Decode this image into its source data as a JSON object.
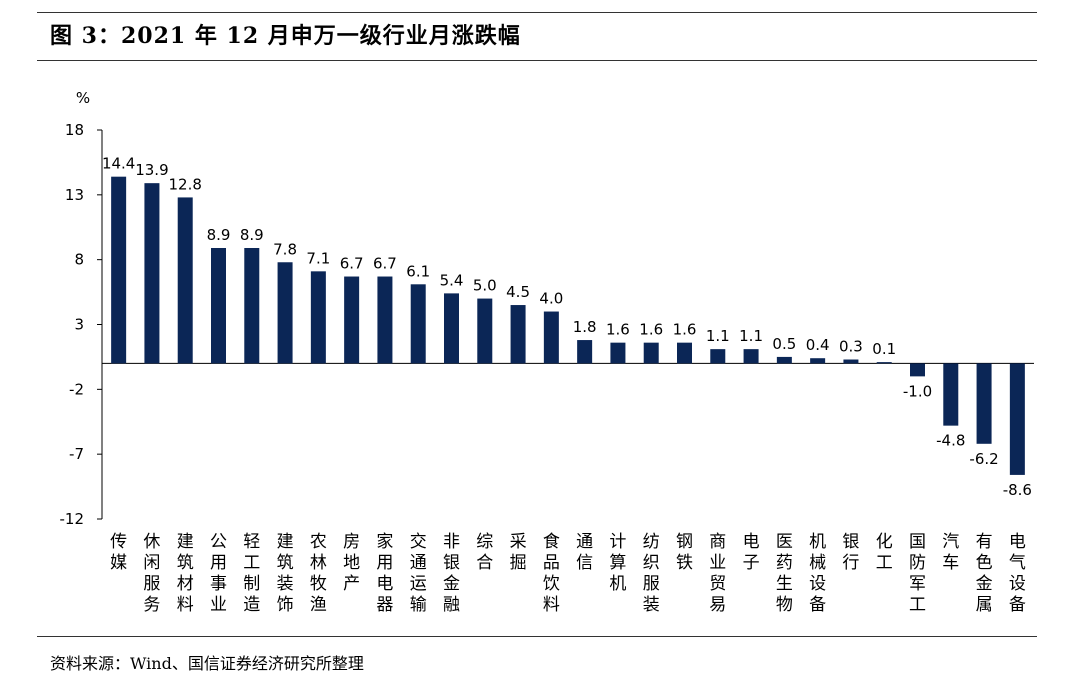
{
  "header": {
    "title": "图 3：2021 年 12 月申万一级行业月涨跌幅"
  },
  "footer": {
    "source": "资料来源：Wind、国信证券经济研究所整理"
  },
  "chart_data": {
    "type": "bar",
    "unit_label": "%",
    "categories": [
      "传媒",
      "休闲服务",
      "建筑材料",
      "公用事业",
      "轻工制造",
      "建筑装饰",
      "农林牧渔",
      "房地产",
      "家用电器",
      "交通运输",
      "非银金融",
      "综合",
      "采掘",
      "食品饮料",
      "通信",
      "计算机",
      "纺织服装",
      "钢铁",
      "商业贸易",
      "电子",
      "医药生物",
      "机械设备",
      "银行",
      "化工",
      "国防军工",
      "汽车",
      "有色金属",
      "电气设备"
    ],
    "values": [
      14.4,
      13.9,
      12.8,
      8.9,
      8.9,
      7.8,
      7.1,
      6.7,
      6.7,
      6.1,
      5.4,
      5.0,
      4.5,
      4.0,
      1.8,
      1.6,
      1.6,
      1.6,
      1.1,
      1.1,
      0.5,
      0.4,
      0.3,
      0.1,
      -1.0,
      -4.8,
      -6.2,
      -8.6
    ],
    "data_labels": [
      "14.4",
      "13.9",
      "12.8",
      "8.9",
      "8.9",
      "7.8",
      "7.1",
      "6.7",
      "6.7",
      "6.1",
      "5.4",
      "5.0",
      "4.5",
      "4.0",
      "1.8",
      "1.6",
      "1.6",
      "1.6",
      "1.1",
      "1.1",
      "0.5",
      "0.4",
      "0.3",
      "0.1",
      "-1.0",
      "-4.8",
      "-6.2",
      "-8.6"
    ],
    "yticks": [
      18,
      13,
      8,
      3,
      -2,
      -7,
      -12
    ],
    "ytick_labels": [
      "18",
      "13",
      "8",
      "3",
      "-2",
      "-7",
      "-12"
    ],
    "ylim": [
      -12,
      18
    ],
    "bar_color": "#0b2656",
    "grid": false,
    "legend": "none"
  }
}
